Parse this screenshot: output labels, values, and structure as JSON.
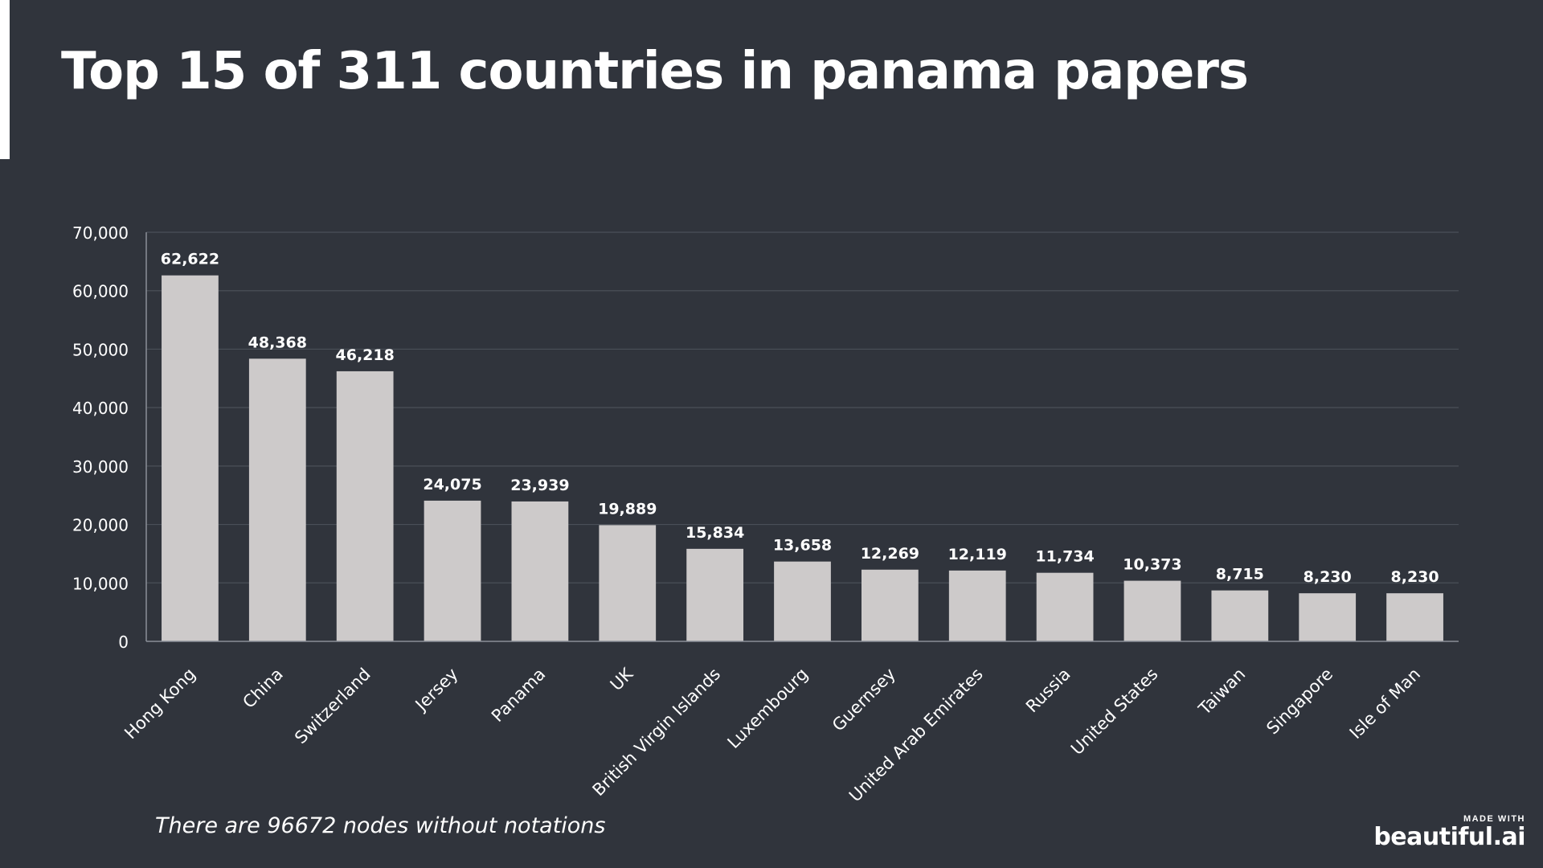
{
  "slide": {
    "title": "Top 15 of 311 countries in panama papers",
    "footnote": "There are 96672 nodes without notations",
    "watermark_small": "MADE WITH",
    "watermark_brand": "beautiful.ai",
    "background_color": "#30343c",
    "bar_color": "#cdcaca",
    "text_color": "#ffffff"
  },
  "chart_data": {
    "type": "bar",
    "categories": [
      "Hong Kong",
      "China",
      "Switzerland",
      "Jersey",
      "Panama",
      "UK",
      "British Virgin Islands",
      "Luxembourg",
      "Guernsey",
      "United Arab Emirates",
      "Russia",
      "United States",
      "Taiwan",
      "Singapore",
      "Isle of Man"
    ],
    "values": [
      62622,
      48368,
      46218,
      24075,
      23939,
      19889,
      15834,
      13658,
      12269,
      12119,
      11734,
      10373,
      8715,
      8230,
      8230
    ],
    "data_labels": [
      "62,622",
      "48,368",
      "46,218",
      "24,075",
      "23,939",
      "19,889",
      "15,834",
      "13,658",
      "12,269",
      "12,119",
      "11,734",
      "10,373",
      "8,715",
      "8,230",
      "8,230"
    ],
    "ylim": [
      0,
      70000
    ],
    "yticks": [
      0,
      10000,
      20000,
      30000,
      40000,
      50000,
      60000,
      70000
    ],
    "ytick_labels": [
      "0",
      "10,000",
      "20,000",
      "30,000",
      "40,000",
      "50,000",
      "60,000",
      "70,000"
    ],
    "grid": true,
    "legend": "none"
  }
}
